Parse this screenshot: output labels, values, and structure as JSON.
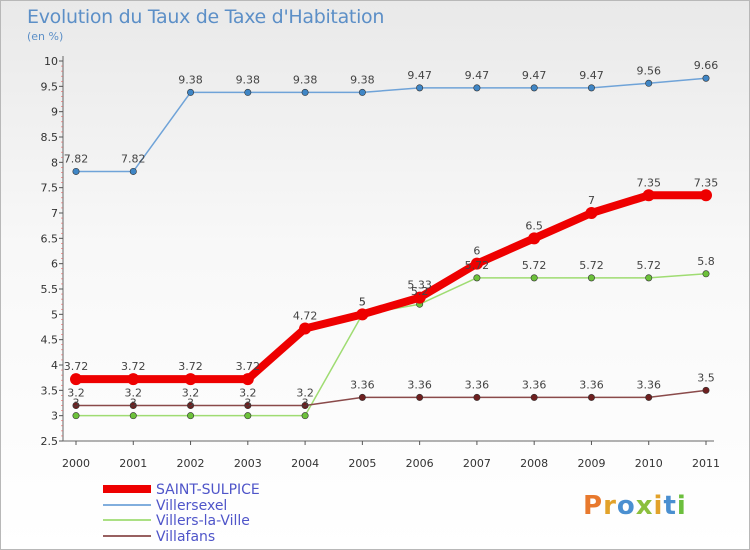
{
  "header": {
    "title": "Evolution du Taux de Taxe d'Habitation",
    "subtitle": "(en %)"
  },
  "logo": {
    "text": "Proxiti"
  },
  "chart_data": {
    "type": "line",
    "title": "Evolution du Taux de Taxe d'Habitation",
    "subtitle": "(en %)",
    "xlabel": "",
    "ylabel": "",
    "ylim": [
      2.5,
      10
    ],
    "yticks": [
      "2.5",
      "3",
      "3.5",
      "4",
      "4.5",
      "5",
      "5.5",
      "6",
      "6.5",
      "7",
      "7.5",
      "8",
      "8.5",
      "9",
      "9.5",
      "10"
    ],
    "x": [
      "2000",
      "2001",
      "2002",
      "2003",
      "2004",
      "2005",
      "2006",
      "2007",
      "2008",
      "2009",
      "2010",
      "2011"
    ],
    "grid": false,
    "legend_position": "bottom-left",
    "series": [
      {
        "name": "Villersexel",
        "color": "#6fa3d8",
        "point_color": "#3f86c6",
        "values": [
          7.82,
          7.82,
          9.38,
          9.38,
          9.38,
          9.38,
          9.47,
          9.47,
          9.47,
          9.47,
          9.56,
          9.66
        ]
      },
      {
        "name": "Villers-la-Ville",
        "color": "#9fdc72",
        "point_color": "#6cc13a",
        "values": [
          3,
          3,
          3,
          3,
          3,
          5,
          5.2,
          5.72,
          5.72,
          5.72,
          5.72,
          5.8
        ]
      },
      {
        "name": "Villafans",
        "color": "#8a4a4a",
        "point_color": "#6e1f1f",
        "values": [
          3.2,
          3.2,
          3.2,
          3.2,
          3.2,
          3.36,
          3.36,
          3.36,
          3.36,
          3.36,
          3.36,
          3.5
        ]
      },
      {
        "name": "SAINT-SULPICE",
        "color": "#ee0000",
        "point_color": "#ee0000",
        "values": [
          3.72,
          3.72,
          3.72,
          3.72,
          4.72,
          5,
          5.33,
          6,
          6.5,
          7,
          7.35,
          7.35
        ]
      }
    ],
    "data_labels": {
      "Villersexel": [
        "7.82",
        "7.82",
        "9.38",
        "9.38",
        "9.38",
        "9.38",
        "9.47",
        "9.47",
        "9.47",
        "9.47",
        "9.56",
        "9.66"
      ],
      "Villers-la-Ville": [
        "3",
        "3",
        "3",
        "3",
        "3",
        "5",
        "5.2",
        "5.72",
        "5.72",
        "5.72",
        "5.72",
        "5.8"
      ],
      "Villafans": [
        "3.2",
        "3.2",
        "3.2",
        "3.2",
        "3.2",
        "3.36",
        "3.36",
        "3.36",
        "3.36",
        "3.36",
        "3.36",
        "3.5"
      ],
      "SAINT-SULPICE": [
        "3.72",
        "3.72",
        "3.72",
        "3.72",
        "4.72",
        "5",
        "5.33",
        "6",
        "6.5",
        "7",
        "7.35",
        "7.35"
      ]
    },
    "legend": [
      "SAINT-SULPICE",
      "Villersexel",
      "Villers-la-Ville",
      "Villafans"
    ]
  }
}
